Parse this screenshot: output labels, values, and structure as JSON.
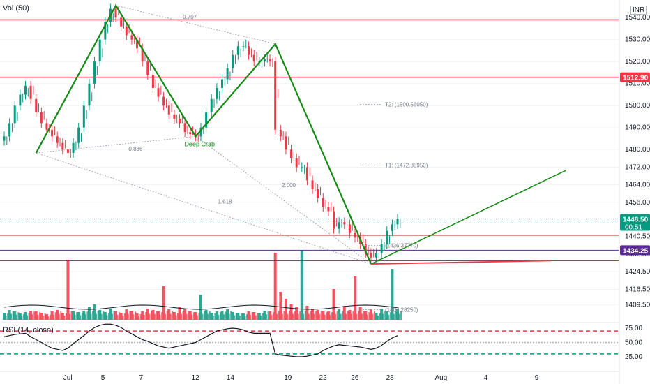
{
  "header": {
    "volume_label": "Vol (50)",
    "currency": "INR"
  },
  "rsi_panel": {
    "label": "RSI (14, close)"
  },
  "chart_data": {
    "type": "candlestick",
    "symbol_currency": "INR",
    "price_axis": {
      "ticks": [
        "1540.00",
        "1530.00",
        "1520.00",
        "1510.00",
        "1500.00",
        "1490.00",
        "1480.00",
        "1472.00",
        "1464.00",
        "1456.00",
        "1448.50",
        "1440.50",
        "1432.50",
        "1424.50",
        "1416.50",
        "1409.50"
      ],
      "range": [
        1402,
        1548
      ]
    },
    "rsi_axis": {
      "ticks": [
        "75.00",
        "50.00",
        "25.00"
      ],
      "range": [
        0,
        100
      ]
    },
    "x_axis": {
      "ticks": [
        "Jul",
        "5",
        "7",
        "12",
        "14",
        "19",
        "22",
        "26",
        "28",
        "Aug",
        "4",
        "9"
      ]
    },
    "price_tags": [
      {
        "label": "1512.90",
        "value": 1512.9,
        "color": "#f23645"
      },
      {
        "label": "1448.50",
        "sub": "00:51",
        "value": 1448.5,
        "color": "#089981"
      },
      {
        "label": "1434.25",
        "value": 1434.25,
        "color": "#5b2c8f"
      }
    ],
    "horizontal_lines": [
      {
        "value": 1539,
        "color": "#f23645"
      },
      {
        "value": 1512.9,
        "color": "#f23645"
      },
      {
        "value": 1441,
        "color": "#f23645"
      },
      {
        "value": 1434.25,
        "color": "#5b2c8f"
      },
      {
        "value": 1429.5,
        "color": "#5b2c8f"
      }
    ],
    "pattern_points": [
      {
        "x": 1.0,
        "price": 1478.5
      },
      {
        "x": 3.5,
        "price": 1545.5
      },
      {
        "x": 6.0,
        "price": 1486
      },
      {
        "x": 8.5,
        "price": 1528
      },
      {
        "x": 11.5,
        "price": 1428
      }
    ],
    "projection": [
      {
        "x": 11.5,
        "price": 1428
      },
      {
        "x": 17.6,
        "price": 1470.5
      }
    ],
    "fib_labels": [
      {
        "text": "0.707",
        "x": 5.6,
        "price": 1539.5
      },
      {
        "text": "0.886",
        "x": 3.9,
        "price": 1479.5
      },
      {
        "text": "1.618",
        "x": 6.7,
        "price": 1455.5
      },
      {
        "text": "2.000",
        "x": 8.7,
        "price": 1463
      }
    ],
    "pattern_label": "Deep Crab",
    "targets": [
      {
        "label": "T2: (1500.56050)",
        "price": 1500.5605
      },
      {
        "label": "T1: (1472.88950)",
        "price": 1472.8895
      },
      {
        "label": "(1436.37770)",
        "price": 1436.3777
      },
      {
        "label": "(1407.28250)",
        "price": 1407.2825
      }
    ],
    "rsi_levels": [
      70,
      50,
      30
    ],
    "close": [
      1486,
      1492,
      1500,
      1505,
      1509,
      1503,
      1497,
      1492,
      1489,
      1486,
      1483,
      1480,
      1478.5,
      1483,
      1490,
      1500,
      1510,
      1520,
      1530,
      1538,
      1544,
      1540,
      1536,
      1532,
      1530,
      1526,
      1520,
      1514,
      1508,
      1504,
      1500,
      1496,
      1494,
      1492,
      1488,
      1487,
      1486,
      1490,
      1497,
      1503,
      1508,
      1512,
      1517,
      1523,
      1527,
      1527,
      1523,
      1520,
      1520,
      1521,
      1520,
      1489,
      1486,
      1480,
      1476,
      1472,
      1472,
      1466,
      1462,
      1458,
      1454,
      1452,
      1444,
      1447,
      1446,
      1442,
      1440,
      1437,
      1433,
      1431,
      1433,
      1437,
      1443,
      1446,
      1448.5
    ],
    "rsi": [
      60,
      62,
      64,
      65,
      66,
      60,
      55,
      50,
      45,
      40,
      38,
      36,
      40,
      48,
      55,
      62,
      70,
      76,
      80,
      82,
      82,
      80,
      76,
      70,
      65,
      60,
      55,
      52,
      48,
      44,
      42,
      40,
      42,
      44,
      46,
      48,
      50,
      55,
      60,
      65,
      70,
      72,
      74,
      75,
      74,
      72,
      68,
      66,
      66,
      66,
      66,
      30,
      28,
      27,
      26,
      25,
      25,
      26,
      28,
      30,
      36,
      40,
      44,
      46,
      45,
      44,
      43,
      42,
      40,
      38,
      40,
      45,
      52,
      58,
      62
    ],
    "volume": [
      0.1,
      0.14,
      0.12,
      0.09,
      0.11,
      0.13,
      0.12,
      0.1,
      0.08,
      0.12,
      0.14,
      0.1,
      0.86,
      0.12,
      0.11,
      0.13,
      0.18,
      0.22,
      0.14,
      0.11,
      0.16,
      0.12,
      0.1,
      0.15,
      0.13,
      0.09,
      0.12,
      0.16,
      0.14,
      0.12,
      0.48,
      0.15,
      0.11,
      0.18,
      0.16,
      0.12,
      0.11,
      0.36,
      0.14,
      0.1,
      0.12,
      0.13,
      0.15,
      0.11,
      0.1,
      0.09,
      0.12,
      0.11,
      0.1,
      0.13,
      0.12,
      0.96,
      0.4,
      0.3,
      0.22,
      0.18,
      1.0,
      0.2,
      0.16,
      0.14,
      0.12,
      0.12,
      0.44,
      0.15,
      0.2,
      0.14,
      0.62,
      0.18,
      0.12,
      0.15,
      0.1,
      0.16,
      0.12,
      0.72,
      0.16
    ]
  }
}
